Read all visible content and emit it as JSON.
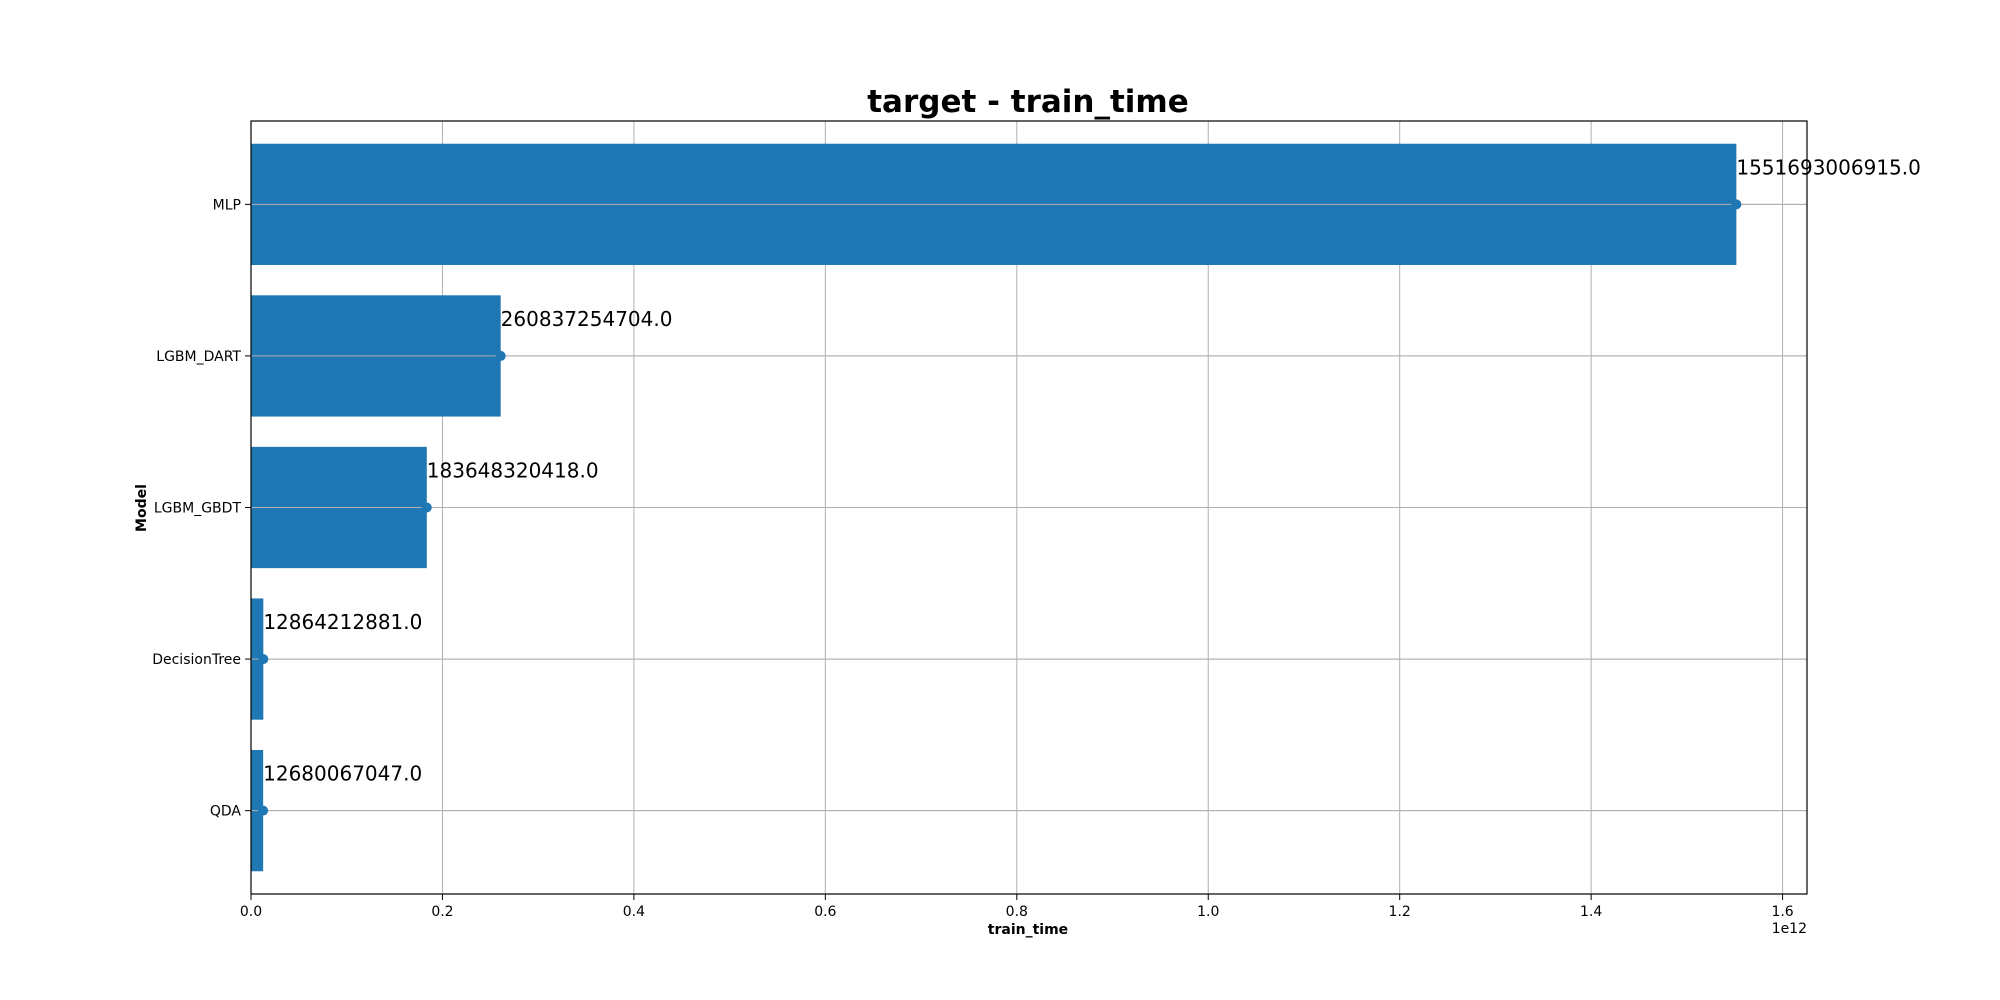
{
  "chart_data": {
    "type": "bar",
    "orientation": "horizontal",
    "title": "target - train_time",
    "xlabel": "train_time",
    "ylabel": "Model",
    "x_offset_label": "1e12",
    "x_scale": 1000000000000.0,
    "xlim": [
      0,
      1.6255
    ],
    "x_ticks": [
      0.0,
      0.2,
      0.4,
      0.6,
      0.8,
      1.0,
      1.2,
      1.4,
      1.6
    ],
    "x_tick_labels": [
      "0.0",
      "0.2",
      "0.4",
      "0.6",
      "0.8",
      "1.0",
      "1.2",
      "1.4",
      "1.6"
    ],
    "grid": true,
    "bar_color": "#1f77b4",
    "categories": [
      "MLP",
      "LGBM_DART",
      "LGBM_GBDT",
      "DecisionTree",
      "QDA"
    ],
    "values": [
      1551693006915.0,
      260837254704.0,
      183648320418.0,
      12864212881.0,
      12680067047.0
    ],
    "value_labels": [
      "1551693006915.0",
      "260837254704.0",
      "183648320418.0",
      "12864212881.0",
      "12680067047.0"
    ]
  }
}
